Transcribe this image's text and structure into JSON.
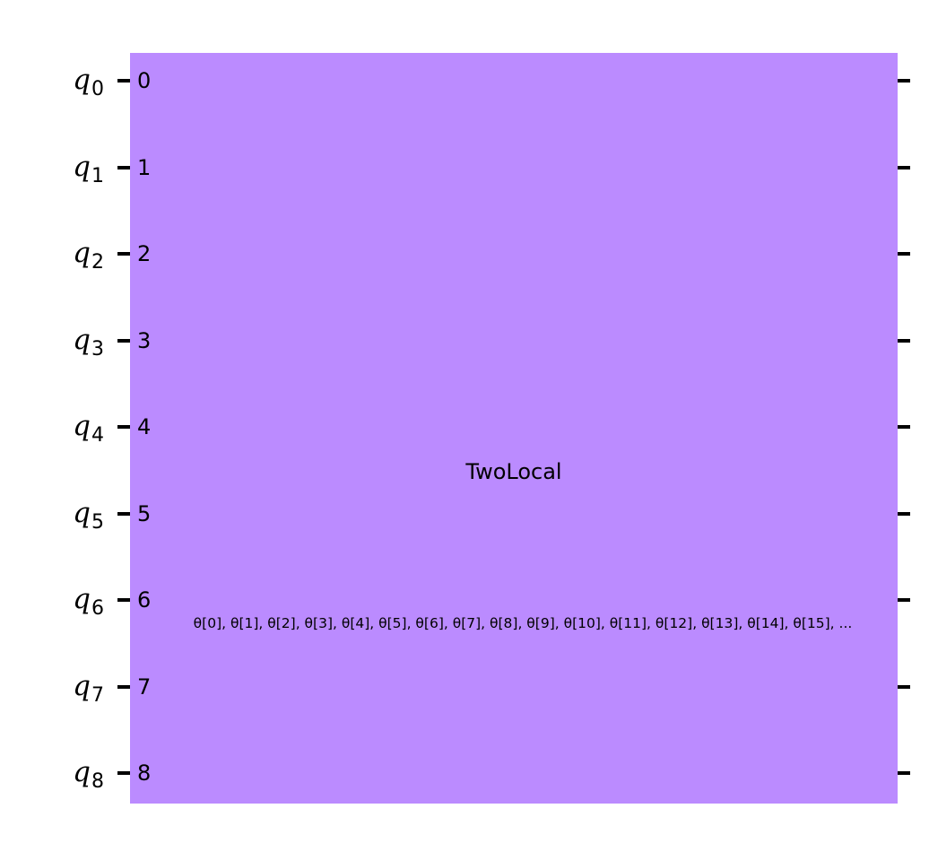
{
  "circuit": {
    "qubits": [
      {
        "label": "q",
        "index": "0"
      },
      {
        "label": "q",
        "index": "1"
      },
      {
        "label": "q",
        "index": "2"
      },
      {
        "label": "q",
        "index": "3"
      },
      {
        "label": "q",
        "index": "4"
      },
      {
        "label": "q",
        "index": "5"
      },
      {
        "label": "q",
        "index": "6"
      },
      {
        "label": "q",
        "index": "7"
      },
      {
        "label": "q",
        "index": "8"
      }
    ],
    "gate": {
      "name": "TwoLocal",
      "params": "θ[0], θ[1], θ[2], θ[3], θ[4], θ[5], θ[6], θ[7], θ[8], θ[9], θ[10], θ[11], θ[12], θ[13], θ[14], θ[15], ...",
      "fill_color": "#bb8bff",
      "wire_indices": [
        "0",
        "1",
        "2",
        "3",
        "4",
        "5",
        "6",
        "7",
        "8"
      ]
    },
    "wire_color": "#000000"
  }
}
